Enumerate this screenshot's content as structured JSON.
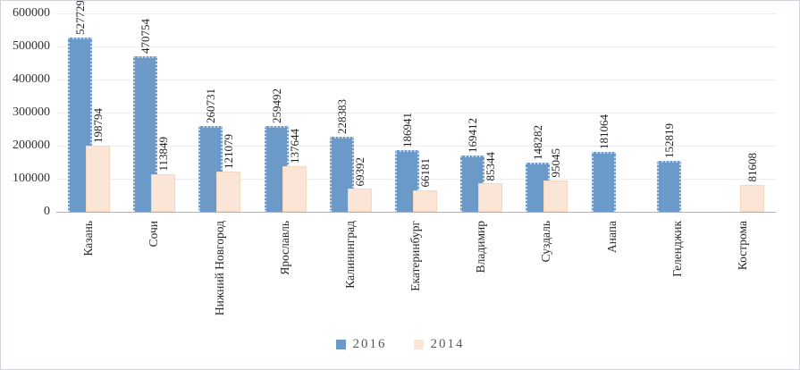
{
  "chart_data": {
    "type": "bar",
    "title": "",
    "categories": [
      "Казань",
      "Сочи",
      "Нижний Новгород",
      "Ярославль",
      "Калининград",
      "Екатеринбург",
      "Владимир",
      "Суздаль",
      "Анапа",
      "Геленджик",
      "Кострома"
    ],
    "series": [
      {
        "name": "2016",
        "color": "#6b9ac9",
        "values": [
          527729,
          470754,
          260731,
          259492,
          228383,
          186941,
          169412,
          148282,
          181064,
          152819,
          null
        ]
      },
      {
        "name": "2014",
        "color": "#fbe5d6",
        "values": [
          198794,
          113849,
          121079,
          137644,
          69392,
          66181,
          85344,
          95045,
          null,
          null,
          81608
        ]
      }
    ],
    "ylim": [
      0,
      600000
    ],
    "yticks": [
      0,
      100000,
      200000,
      300000,
      400000,
      500000,
      600000
    ],
    "ytick_labels": [
      "0",
      "100000",
      "200000",
      "300000",
      "400000",
      "500000",
      "600000"
    ],
    "bar_value_labels": "rotated-90-above-bars",
    "x_label_rotation": "rotated-90",
    "grid": "horizontal-light",
    "gridline_color": "#ededed",
    "axis_line_color": "#b3b3b3",
    "legend_position": "bottom-center"
  },
  "legend": {
    "items": [
      {
        "label": "2016",
        "color": "#6b9ac9"
      },
      {
        "label": "2014",
        "color": "#fbe5d6"
      }
    ]
  }
}
